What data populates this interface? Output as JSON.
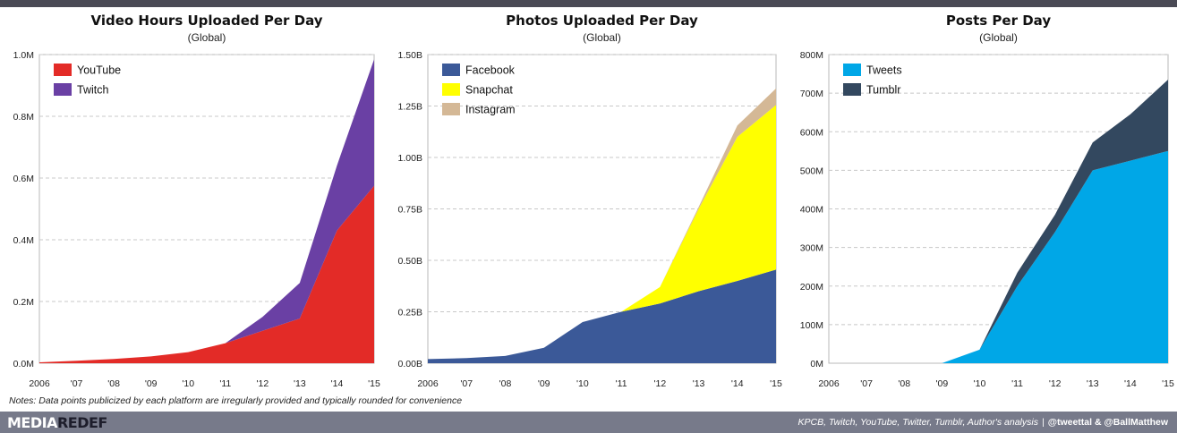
{
  "chart_data": [
    {
      "type": "area",
      "stacked": true,
      "title": "Video Hours Uploaded Per Day",
      "subtitle": "(Global)",
      "x": [
        2006,
        2007,
        2008,
        2009,
        2010,
        2011,
        2012,
        2013,
        2014,
        2015
      ],
      "x_tick_labels": [
        "2006",
        "'07",
        "'08",
        "'09",
        "'10",
        "'11",
        "'12",
        "'13",
        "'14",
        "'15"
      ],
      "ylim": [
        0,
        1000000
      ],
      "y_ticks": [
        0,
        200000,
        400000,
        600000,
        800000,
        1000000
      ],
      "y_tick_labels": [
        "0.0M",
        "0.2M",
        "0.4M",
        "0.6M",
        "0.8M",
        "1.0M"
      ],
      "grid": "horizontal dashed",
      "legend_position": "top-left",
      "series": [
        {
          "name": "YouTube",
          "color": "#e32b27",
          "values": [
            3000,
            8000,
            14000,
            22000,
            36000,
            65000,
            105000,
            145000,
            430000,
            575000
          ]
        },
        {
          "name": "Twitch",
          "color": "#6a40a4",
          "values": [
            0,
            0,
            0,
            0,
            0,
            0,
            45000,
            115000,
            210000,
            410000
          ]
        }
      ]
    },
    {
      "type": "area",
      "stacked": true,
      "title": "Photos Uploaded Per Day",
      "subtitle": "(Global)",
      "x": [
        2006,
        2007,
        2008,
        2009,
        2010,
        2011,
        2012,
        2013,
        2014,
        2015
      ],
      "x_tick_labels": [
        "2006",
        "'07",
        "'08",
        "'09",
        "'10",
        "'11",
        "'12",
        "'13",
        "'14",
        "'15"
      ],
      "ylim": [
        0,
        1500000000
      ],
      "y_ticks": [
        0,
        250000000,
        500000000,
        750000000,
        1000000000,
        1250000000,
        1500000000
      ],
      "y_tick_labels": [
        "0.00B",
        "0.25B",
        "0.50B",
        "0.75B",
        "1.00B",
        "1.25B",
        "1.50B"
      ],
      "grid": "horizontal dashed",
      "legend_position": "top-left",
      "series": [
        {
          "name": "Facebook",
          "color": "#3b5998",
          "values": [
            20000000,
            25000000,
            35000000,
            75000000,
            200000000,
            250000000,
            290000000,
            350000000,
            400000000,
            455000000
          ]
        },
        {
          "name": "Snapchat",
          "color": "#ffff00",
          "values": [
            0,
            0,
            0,
            0,
            0,
            0,
            80000000,
            400000000,
            700000000,
            800000000
          ]
        },
        {
          "name": "Instagram",
          "color": "#d4b896",
          "values": [
            0,
            0,
            0,
            0,
            0,
            0,
            0,
            10000000,
            55000000,
            80000000
          ]
        }
      ]
    },
    {
      "type": "area",
      "stacked": true,
      "title": "Posts Per Day",
      "subtitle": "(Global)",
      "x": [
        2006,
        2007,
        2008,
        2009,
        2010,
        2011,
        2012,
        2013,
        2014,
        2015
      ],
      "x_tick_labels": [
        "2006",
        "'07",
        "'08",
        "'09",
        "'10",
        "'11",
        "'12",
        "'13",
        "'14",
        "'15"
      ],
      "ylim": [
        0,
        800000000
      ],
      "y_ticks": [
        0,
        100000000,
        200000000,
        300000000,
        400000000,
        500000000,
        600000000,
        700000000,
        800000000
      ],
      "y_tick_labels": [
        "0M",
        "100M",
        "200M",
        "300M",
        "400M",
        "500M",
        "600M",
        "700M",
        "800M"
      ],
      "grid": "horizontal dashed",
      "legend_position": "top-left",
      "series": [
        {
          "name": "Tweets",
          "color": "#00a7e7",
          "values": [
            0,
            0,
            0,
            0,
            35000000,
            200000000,
            340000000,
            500000000,
            525000000,
            550000000
          ]
        },
        {
          "name": "Tumblr",
          "color": "#33485f",
          "values": [
            0,
            0,
            0,
            0,
            0,
            35000000,
            45000000,
            72000000,
            120000000,
            185000000
          ]
        }
      ]
    }
  ],
  "note": "Notes: Data points publicized by each platform are irregularly provided and typically rounded for convenience",
  "footer": {
    "brand_part1": "MEDIA",
    "brand_part2": "REDEF",
    "sources": "KPCB, Twitch, YouTube, Twitter, Tumblr, Author's analysis",
    "separator": "|",
    "handle1": "@tweettal",
    "amp": "&",
    "handle2": "@BallMatthew"
  },
  "colors": {
    "topbar": "#4a4a55",
    "footer": "#777a8a",
    "brand_dark": "#1d1d2b"
  }
}
